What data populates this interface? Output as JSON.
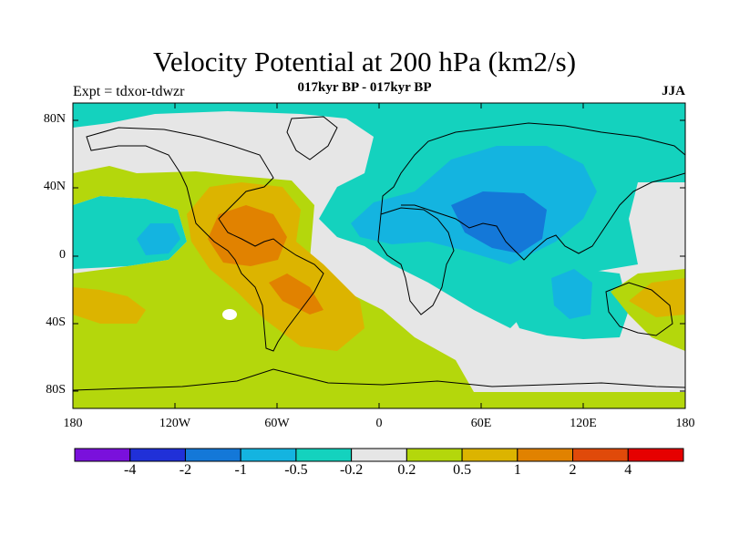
{
  "title": "Velocity Potential at 200 hPa (km2/s)",
  "subtitle": "017kyr BP - 017kyr BP",
  "left_label": "Expt = tdxor-tdwzr",
  "right_label": "JJA",
  "lat_labels": [
    "80N",
    "40N",
    "0",
    "40S",
    "80S"
  ],
  "lon_labels": [
    "180",
    "120W",
    "60W",
    "0",
    "60E",
    "120E",
    "180"
  ],
  "colorbar": {
    "colors": [
      "#7a10dc",
      "#2030d8",
      "#1478d8",
      "#14b4e0",
      "#14d2be",
      "#e6e6e6",
      "#b4d70c",
      "#dcb400",
      "#e18200",
      "#e04a0a",
      "#e60000"
    ],
    "labels": [
      "-4",
      "-2",
      "-1",
      "-0.5",
      "-0.2",
      "0.2",
      "0.5",
      "1",
      "2",
      "4"
    ]
  }
}
